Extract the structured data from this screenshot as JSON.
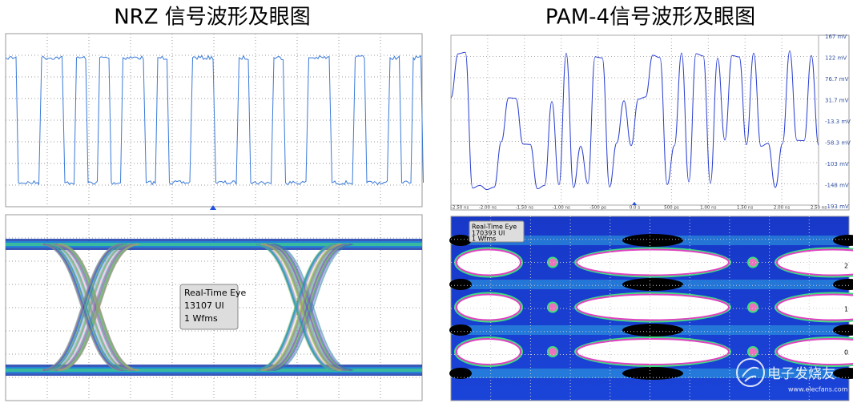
{
  "left": {
    "title": "NRZ 信号波形及眼图",
    "eye_box": [
      "Real-Time Eye",
      "13107 UI",
      "1 Wfms"
    ]
  },
  "right": {
    "title": "PAM-4信号波形及眼图",
    "y_labels": [
      "167 mV",
      "122 mV",
      "76.7 mV",
      "31.7 mV",
      "-13.3 mV",
      "-58.3 mV",
      "-103 mV",
      "-148 mV",
      "-193 mV"
    ],
    "x_labels": [
      "-2.50 ns",
      "-2.00 ns",
      "-1.50 ns",
      "-1.00 ns",
      "-500 ps",
      "0.0 s",
      "500 ps",
      "1.00 ns",
      "1.50 ns",
      "2.00 ns",
      "2.50 ns"
    ],
    "eye_box": [
      "Real-Time Eye",
      "170393 UI",
      "1 Wfms"
    ],
    "eye_levels": [
      "2",
      "1",
      "0"
    ]
  },
  "watermark": {
    "name": "电子发烧友",
    "url": "www.elecfans.com"
  }
}
